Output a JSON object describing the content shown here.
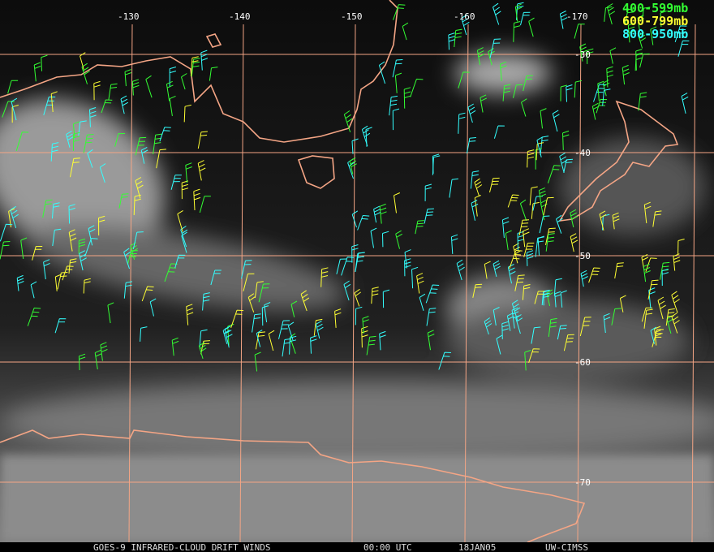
{
  "longitude_labels": [
    "-130",
    "-140",
    "-150",
    "-160",
    "-170"
  ],
  "latitude_labels": [
    "-30",
    "-40",
    "-50",
    "-60",
    "-70"
  ],
  "legend": [
    {
      "label": "400-599mb",
      "color": "#33ff33"
    },
    {
      "label": "600-799mb",
      "color": "#ffff33"
    },
    {
      "label": "800-950mb",
      "color": "#33ffff"
    }
  ],
  "footer": {
    "product": "GOES-9 INFRARED-CLOUD DRIFT WINDS",
    "time": "00:00 UTC",
    "date": "18JAN05",
    "source": "UW-CIMSS"
  }
}
